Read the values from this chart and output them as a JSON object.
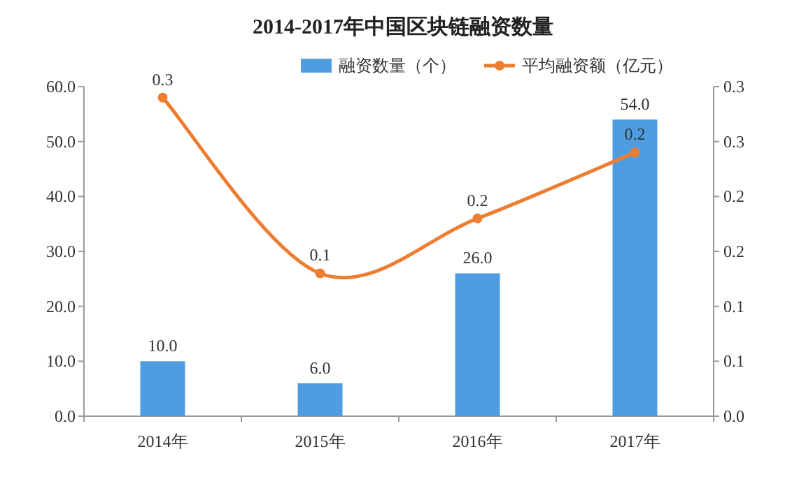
{
  "chart_data": {
    "type": "bar",
    "title": "2014-2017年中国区块链融资数量",
    "categories": [
      "2014年",
      "2015年",
      "2016年",
      "2017年"
    ],
    "series": [
      {
        "name": "融资数量（个）",
        "color": "#4f9de0",
        "values": [
          10,
          6,
          26,
          54
        ],
        "value_labels": [
          "10.0",
          "6.0",
          "26.0",
          "54.0"
        ]
      },
      {
        "name": "平均融资额（亿元）",
        "type": "line",
        "axis": "y2",
        "color": "#ed7d31",
        "marker": "circle",
        "values": [
          0.29,
          0.13,
          0.18,
          0.24
        ],
        "value_labels": [
          "0.3",
          "0.1",
          "0.2",
          "0.2"
        ]
      }
    ],
    "ylim": [
      0,
      60
    ],
    "yticks": [
      {
        "value": 0,
        "label": "0.0"
      },
      {
        "value": 10,
        "label": "10.0"
      },
      {
        "value": 20,
        "label": "20.0"
      },
      {
        "value": 30,
        "label": "30.0"
      },
      {
        "value": 40,
        "label": "40.0"
      },
      {
        "value": 50,
        "label": "50.0"
      },
      {
        "value": 60,
        "label": "60.0"
      }
    ],
    "y2lim": [
      0,
      0.3
    ],
    "y2ticks": [
      {
        "value": 0,
        "label": "0.0"
      },
      {
        "value": 0.05,
        "label": "0.1"
      },
      {
        "value": 0.1,
        "label": "0.1"
      },
      {
        "value": 0.15,
        "label": "0.2"
      },
      {
        "value": 0.2,
        "label": "0.2"
      },
      {
        "value": 0.25,
        "label": "0.3"
      },
      {
        "value": 0.3,
        "label": "0.3"
      }
    ],
    "legend": "top",
    "grid": false
  }
}
